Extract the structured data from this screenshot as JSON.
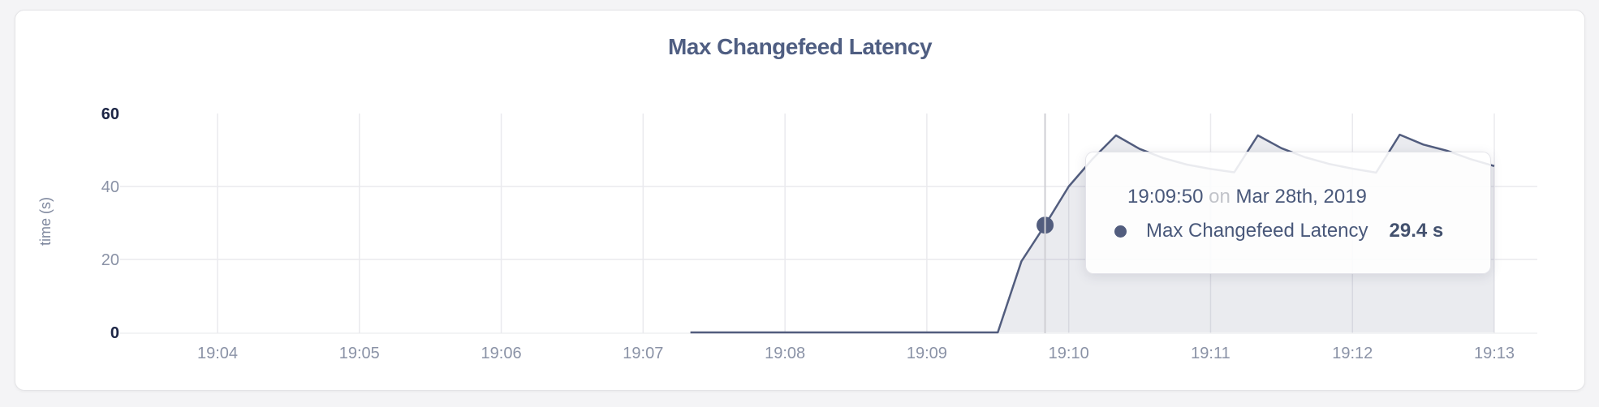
{
  "card": {
    "title": "Max Changefeed Latency"
  },
  "colors": {
    "title": "#4f5e82",
    "series": "#525d7e",
    "area_fill": "rgba(83,94,126,0.12)",
    "gridline": "#eaeaee",
    "zero_axis": "#eff0f2",
    "crosshair": "#cfcfd4",
    "tick_muted": "#8a92a6",
    "tick_emphasis": "#1c2545"
  },
  "tooltip": {
    "time": "19:09:50",
    "conjunction": "on",
    "date": "Mar 28th, 2019",
    "series_label": "Max Changefeed Latency",
    "value": "29.4 s"
  },
  "chart_data": {
    "type": "area",
    "title": "Max Changefeed Latency",
    "xlabel": "",
    "ylabel": "time (s)",
    "ylim": [
      0,
      60
    ],
    "grid": "on",
    "legend_position": "none",
    "xticks": [
      "19:04",
      "19:05",
      "19:06",
      "19:07",
      "19:08",
      "19:09",
      "19:10",
      "19:11",
      "19:12",
      "19:13"
    ],
    "yticks": [
      0,
      20,
      40,
      60
    ],
    "yticks_emphasized": [
      0,
      60
    ],
    "x": [
      "19:07:20",
      "19:07:30",
      "19:07:40",
      "19:07:50",
      "19:08:00",
      "19:08:10",
      "19:08:20",
      "19:08:30",
      "19:08:40",
      "19:08:50",
      "19:09:00",
      "19:09:10",
      "19:09:20",
      "19:09:30",
      "19:09:40",
      "19:09:50",
      "19:10:00",
      "19:10:10",
      "19:10:20",
      "19:10:30",
      "19:10:40",
      "19:10:50",
      "19:11:00",
      "19:11:10",
      "19:11:20",
      "19:11:30",
      "19:11:40",
      "19:11:50",
      "19:12:00",
      "19:12:10",
      "19:12:20",
      "19:12:30",
      "19:12:40",
      "19:12:50",
      "19:13:00"
    ],
    "series": [
      {
        "name": "Max Changefeed Latency",
        "values": [
          0,
          0,
          0,
          0,
          0,
          0,
          0,
          0,
          0,
          0,
          0,
          0,
          0,
          0,
          19.5,
          29.4,
          40.0,
          47.5,
          54.0,
          50.3,
          47.8,
          46.0,
          44.8,
          43.9,
          54.0,
          50.5,
          48.0,
          46.2,
          44.9,
          43.8,
          54.2,
          51.5,
          49.8,
          47.5,
          45.6
        ]
      }
    ],
    "hover": {
      "time": "19:09:50",
      "value": 29.4,
      "value_label": "29.4 s"
    }
  }
}
